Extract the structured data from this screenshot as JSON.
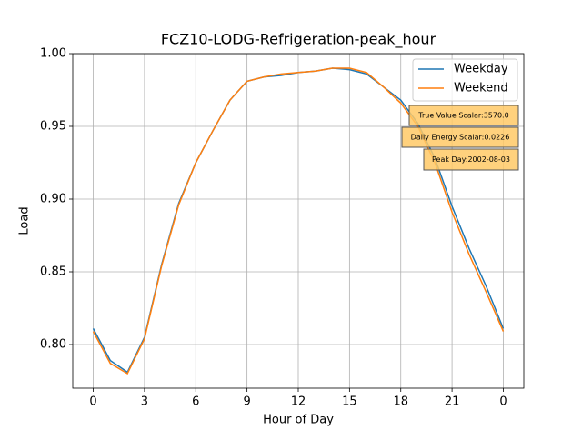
{
  "chart_data": {
    "type": "line",
    "title": "FCZ10-LODG-Refrigeration-peak_hour",
    "x_label": "Hour of Day",
    "y_label": "Load",
    "x": [
      0,
      1,
      2,
      3,
      4,
      5,
      6,
      7,
      8,
      9,
      10,
      11,
      12,
      13,
      14,
      15,
      16,
      17,
      18,
      19,
      20,
      21,
      22,
      23,
      24
    ],
    "series": [
      {
        "name": "Weekday",
        "color": "#1f77b4",
        "values": [
          0.811,
          0.789,
          0.781,
          0.805,
          0.855,
          0.897,
          0.925,
          0.947,
          0.968,
          0.981,
          0.984,
          0.985,
          0.987,
          0.988,
          0.99,
          0.989,
          0.986,
          0.977,
          0.968,
          0.952,
          0.928,
          0.895,
          0.866,
          0.84,
          0.811
        ]
      },
      {
        "name": "Weekend",
        "color": "#ff7f0e",
        "values": [
          0.809,
          0.787,
          0.78,
          0.804,
          0.854,
          0.896,
          0.925,
          0.947,
          0.968,
          0.981,
          0.984,
          0.986,
          0.987,
          0.988,
          0.99,
          0.99,
          0.987,
          0.977,
          0.966,
          0.95,
          0.925,
          0.891,
          0.862,
          0.836,
          0.809
        ]
      }
    ],
    "xlim": [
      -1.2,
      25.2
    ],
    "ylim": [
      0.77,
      1.0
    ],
    "xticks": [
      0,
      3,
      6,
      9,
      12,
      15,
      18,
      21,
      {
        "value": 24,
        "label": "0"
      }
    ],
    "yticks": [
      {
        "value": 0.8,
        "label": "0.80"
      },
      {
        "value": 0.85,
        "label": "0.85"
      },
      {
        "value": 0.9,
        "label": "0.90"
      },
      {
        "value": 0.95,
        "label": "0.95"
      },
      {
        "value": 1.0,
        "label": "1.00"
      }
    ],
    "grid": true,
    "legend": "upper-right",
    "annotations": [
      "True Value Scalar:3570.0",
      "Daily Energy Scalar:0.0226",
      "Peak Day:2002-08-03"
    ]
  }
}
